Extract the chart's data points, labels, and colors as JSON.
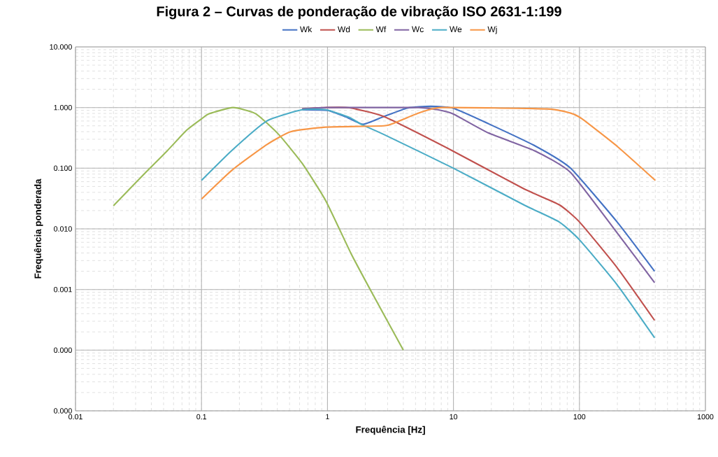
{
  "chart_data": {
    "type": "line",
    "title": "Figura 2 – Curvas de ponderação de vibração ISO 2631-1:199",
    "xlabel": "Frequência [Hz]",
    "ylabel": "Frequência ponderada",
    "log": "xy",
    "grid": true,
    "legend": "top",
    "marker": "none",
    "line_style": "solid",
    "xlim": [
      0.01,
      1000
    ],
    "xticks": [
      0.01,
      0.1,
      1,
      10,
      100,
      1000
    ],
    "ylim": [
      1e-05,
      10
    ],
    "yticks": [
      {
        "value": 1e-05,
        "label": "0.000"
      },
      {
        "value": 0.0001,
        "label": "0.000"
      },
      {
        "value": 0.001,
        "label": "0.001"
      },
      {
        "value": 0.01,
        "label": "0.010"
      },
      {
        "value": 0.1,
        "label": "0.100"
      },
      {
        "value": 1,
        "label": "1.000"
      },
      {
        "value": 10,
        "label": "10.000"
      }
    ],
    "series": [
      {
        "name": "Wk",
        "color": "#4472c4",
        "x": [
          0.63,
          1,
          1.4,
          1.92,
          2.8,
          4.3,
          6.6,
          10,
          19,
          45,
          85,
          199,
          395
        ],
        "values": [
          0.92,
          0.9,
          0.7,
          0.53,
          0.71,
          0.98,
          1.05,
          0.97,
          0.54,
          0.23,
          0.1,
          0.013,
          0.002
        ]
      },
      {
        "name": "Wd",
        "color": "#c0504d",
        "x": [
          0.63,
          1,
          1.49,
          2.8,
          10,
          36,
          69,
          100,
          199,
          395
        ],
        "values": [
          0.95,
          1.0,
          0.99,
          0.71,
          0.19,
          0.046,
          0.025,
          0.013,
          0.0023,
          0.00031
        ]
      },
      {
        "name": "Wf",
        "color": "#9bbb59",
        "x": [
          0.02,
          0.036,
          0.053,
          0.076,
          0.1,
          0.115,
          0.178,
          0.27,
          0.41,
          0.63,
          0.97,
          1.54,
          2.27,
          4.0
        ],
        "values": [
          0.024,
          0.085,
          0.19,
          0.42,
          0.65,
          0.79,
          1.0,
          0.79,
          0.36,
          0.12,
          0.029,
          0.0039,
          0.00086,
          0.0001
        ]
      },
      {
        "name": "Wc",
        "color": "#8064a2",
        "x": [
          0.63,
          1,
          2,
          5.3,
          7.5,
          10,
          19,
          45,
          85,
          199,
          395
        ],
        "values": [
          0.95,
          1.0,
          1.0,
          1.0,
          0.92,
          0.78,
          0.38,
          0.19,
          0.085,
          0.0086,
          0.0013
        ]
      },
      {
        "name": "We",
        "color": "#4bacc6",
        "x": [
          0.1,
          0.176,
          0.33,
          0.63,
          0.97,
          1.49,
          1.85,
          2.8,
          10,
          36,
          45,
          69,
          100,
          199,
          395
        ],
        "values": [
          0.063,
          0.2,
          0.6,
          0.92,
          0.92,
          0.69,
          0.53,
          0.36,
          0.1,
          0.025,
          null,
          0.013,
          0.0066,
          0.0012,
          0.00016
        ]
      },
      {
        "name": "Wj",
        "color": "#f79646",
        "x": [
          0.1,
          0.176,
          0.33,
          0.51,
          0.97,
          2.8,
          3.5,
          5.3,
          8.1,
          55,
          85,
          105,
          199,
          400
        ],
        "values": [
          0.031,
          0.094,
          0.245,
          0.4,
          0.475,
          0.5,
          0.57,
          0.81,
          1.0,
          0.95,
          0.81,
          0.65,
          0.23,
          0.063
        ]
      }
    ]
  }
}
